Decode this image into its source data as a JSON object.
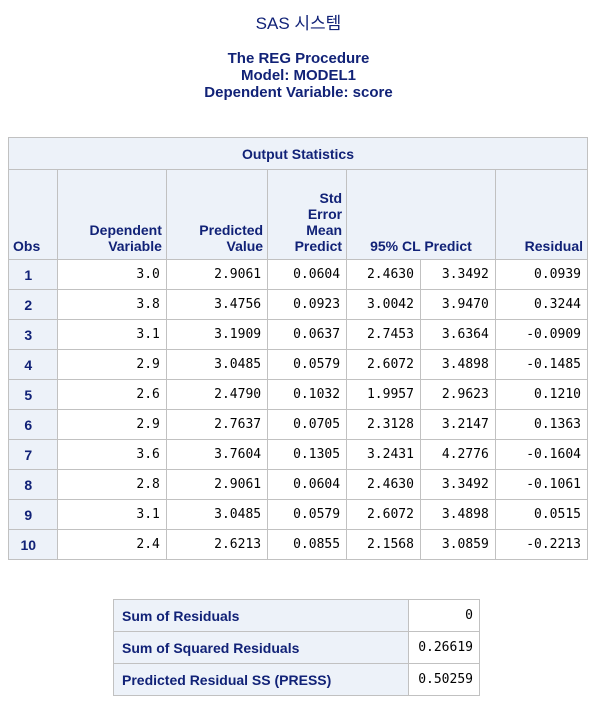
{
  "system_title": "SAS 시스템",
  "procedure": {
    "line1": "The REG Procedure",
    "line2": "Model: MODEL1",
    "line3": "Dependent Variable: score"
  },
  "output_table": {
    "caption": "Output Statistics",
    "headers": {
      "obs": "Obs",
      "dependent_l1": "Dependent",
      "dependent_l2": "Variable",
      "predicted_l1": "Predicted",
      "predicted_l2": "Value",
      "std_l1": "Std",
      "std_l2": "Error",
      "std_l3": "Mean",
      "std_l4": "Predict",
      "ci": "95% CL Predict",
      "residual": "Residual"
    },
    "rows": [
      [
        "1",
        "3.0",
        "2.9061",
        "0.0604",
        "2.4630",
        "3.3492",
        "0.0939"
      ],
      [
        "2",
        "3.8",
        "3.4756",
        "0.0923",
        "3.0042",
        "3.9470",
        "0.3244"
      ],
      [
        "3",
        "3.1",
        "3.1909",
        "0.0637",
        "2.7453",
        "3.6364",
        "-0.0909"
      ],
      [
        "4",
        "2.9",
        "3.0485",
        "0.0579",
        "2.6072",
        "3.4898",
        "-0.1485"
      ],
      [
        "5",
        "2.6",
        "2.4790",
        "0.1032",
        "1.9957",
        "2.9623",
        "0.1210"
      ],
      [
        "6",
        "2.9",
        "2.7637",
        "0.0705",
        "2.3128",
        "3.2147",
        "0.1363"
      ],
      [
        "7",
        "3.6",
        "3.7604",
        "0.1305",
        "3.2431",
        "4.2776",
        "-0.1604"
      ],
      [
        "8",
        "2.8",
        "2.9061",
        "0.0604",
        "2.4630",
        "3.3492",
        "-0.1061"
      ],
      [
        "9",
        "3.1",
        "3.0485",
        "0.0579",
        "2.6072",
        "3.4898",
        "0.0515"
      ],
      [
        "10",
        "2.4",
        "2.6213",
        "0.0855",
        "2.1568",
        "3.0859",
        "-0.2213"
      ]
    ]
  },
  "summary": [
    {
      "label": "Sum of Residuals",
      "value": "0"
    },
    {
      "label": "Sum of Squared Residuals",
      "value": "0.26619"
    },
    {
      "label": "Predicted Residual SS (PRESS)",
      "value": "0.50259"
    }
  ]
}
